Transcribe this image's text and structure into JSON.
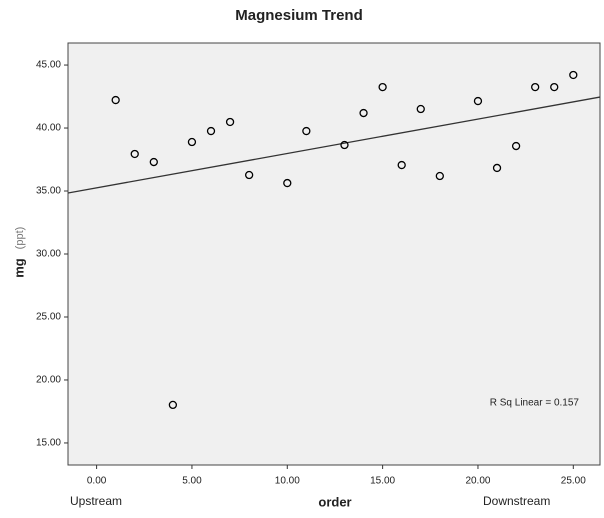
{
  "chart_data": {
    "type": "scatter",
    "title": "Magnesium Trend",
    "xlabel": "order",
    "ylabel": "mg",
    "ylabel_unit": "(ppt)",
    "x_annotations": [
      "Upstream",
      "Downstream"
    ],
    "fit_annotation": "R Sq Linear = 0.157",
    "x": [
      1,
      2,
      3,
      4,
      5,
      6,
      7,
      8,
      10,
      11,
      13,
      14,
      15,
      16,
      17,
      18,
      20,
      21,
      22,
      23,
      24,
      25
    ],
    "values": [
      42.22,
      37.94,
      37.3,
      18.02,
      38.89,
      39.76,
      40.48,
      36.27,
      35.63,
      39.76,
      38.65,
      41.19,
      43.25,
      37.06,
      41.51,
      36.19,
      42.14,
      36.83,
      38.57,
      43.25,
      43.25,
      44.21
    ],
    "color": "#000000",
    "fit_line": {
      "intercept": 35.25,
      "slope": 0.273,
      "color": "#333333"
    },
    "xlim": [
      -1.5,
      26.4
    ],
    "ylim": [
      13.25,
      46.75
    ],
    "xticks": [
      {
        "value": 0,
        "label": "0.00"
      },
      {
        "value": 5,
        "label": "5.00"
      },
      {
        "value": 10,
        "label": "10.00"
      },
      {
        "value": 15,
        "label": "15.00"
      },
      {
        "value": 20,
        "label": "20.00"
      },
      {
        "value": 25,
        "label": "25.00"
      }
    ],
    "yticks": [
      {
        "value": 15,
        "label": "15.00"
      },
      {
        "value": 20,
        "label": "20.00"
      },
      {
        "value": 25,
        "label": "25.00"
      },
      {
        "value": 30,
        "label": "30.00"
      },
      {
        "value": 35,
        "label": "35.00"
      },
      {
        "value": 40,
        "label": "40.00"
      },
      {
        "value": 45,
        "label": "45.00"
      }
    ],
    "plot_background": "#f0f0f0",
    "grid": false
  }
}
